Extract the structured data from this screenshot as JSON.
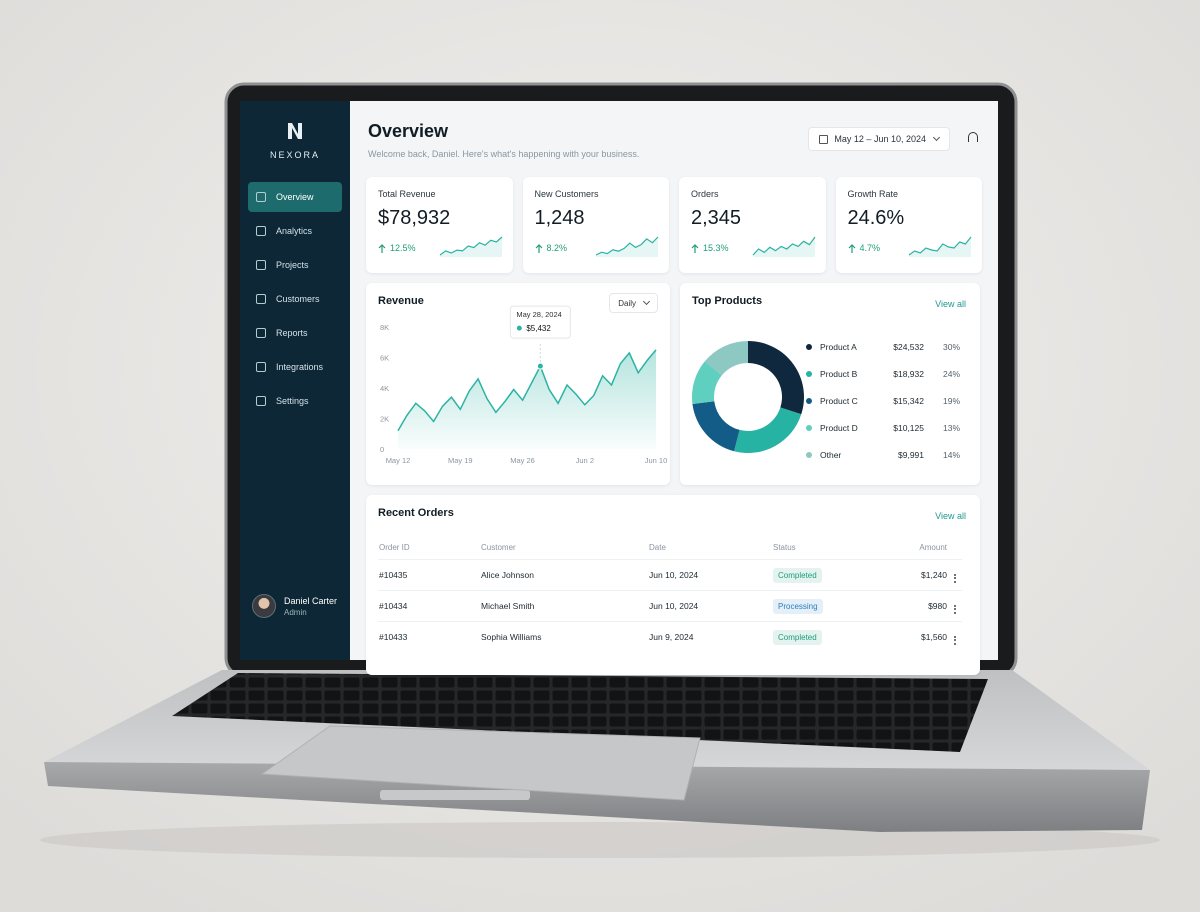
{
  "sidebar": {
    "logo": "NEXORA",
    "nav": [
      "Overview",
      "Analytics",
      "Projects",
      "Customers",
      "Reports",
      "Integrations",
      "Settings"
    ],
    "user": {
      "name": "Daniel Carter",
      "role": "Admin"
    }
  },
  "header": {
    "title": "Overview",
    "subtitle": "Welcome back, Daniel. Here's what's happening with your business.",
    "date_range": "May 12 – Jun 10, 2024"
  },
  "kpis": [
    {
      "label": "Total Revenue",
      "value": "$78,932",
      "change": "12.5%",
      "trend": [
        2,
        3,
        2.5,
        3.2,
        3,
        4.2,
        3.8,
        5,
        4.4,
        5.6,
        5.2,
        6.4
      ]
    },
    {
      "label": "New Customers",
      "value": "1,248",
      "change": "8.2%",
      "trend": [
        2,
        2.6,
        2.3,
        3.1,
        2.8,
        3.4,
        4.5,
        3.6,
        4.2,
        5.4,
        4.6,
        5.8
      ]
    },
    {
      "label": "Orders",
      "value": "2,345",
      "change": "15.3%",
      "trend": [
        2,
        3.4,
        2.6,
        3.8,
        3,
        4,
        3.4,
        4.6,
        4,
        5.2,
        4.4,
        6.2
      ]
    },
    {
      "label": "Growth Rate",
      "value": "24.6%",
      "change": "4.7%",
      "trend": [
        2,
        2.8,
        2.4,
        3.4,
        3,
        2.8,
        4.2,
        3.6,
        3.4,
        4.6,
        4.2,
        5.6
      ]
    }
  ],
  "chart_data": [
    {
      "type": "area",
      "title": "Revenue",
      "period": "Daily",
      "categories": [
        "May 12",
        null,
        null,
        null,
        null,
        null,
        null,
        "May 19",
        null,
        null,
        null,
        null,
        null,
        null,
        "May 26",
        null,
        null,
        null,
        null,
        null,
        null,
        "Jun 2",
        null,
        null,
        null,
        null,
        null,
        null,
        null,
        "Jun 10"
      ],
      "values": [
        1200,
        2200,
        3000,
        2500,
        1800,
        2800,
        3400,
        2600,
        3800,
        4600,
        3300,
        2400,
        3100,
        3900,
        3200,
        4300,
        5432,
        3900,
        3000,
        4200,
        3600,
        2900,
        3500,
        4800,
        4200,
        5600,
        6300,
        5000,
        5800,
        6500
      ],
      "value_labels": [
        null,
        null,
        null,
        null,
        null,
        null,
        null,
        null,
        null,
        null,
        null,
        null,
        null,
        null,
        null,
        null,
        "$5,432",
        null,
        null,
        null,
        null,
        null,
        null,
        null,
        null,
        null,
        null,
        null,
        null,
        null
      ],
      "tooltip_title": "May 28, 2024",
      "color": "#2bb3a3",
      "ylim": [
        0,
        8000
      ],
      "yticks": [
        0,
        {
          "value": 2000,
          "label": "2K"
        },
        {
          "value": 4000,
          "label": "4K"
        },
        {
          "value": 6000,
          "label": "6K"
        },
        {
          "value": 8000,
          "label": "8K"
        }
      ],
      "grid": false
    },
    {
      "type": "pie",
      "donut": true,
      "title": "Top Products",
      "link": "View all",
      "categories": [
        "Product A",
        "Product B",
        "Product C",
        "Product D",
        "Other"
      ],
      "values": [
        30,
        24,
        19,
        13,
        14
      ],
      "value_labels": [
        "30%",
        "24%",
        "19%",
        "13%",
        "14%"
      ],
      "amounts": [
        "$24,532",
        "$18,932",
        "$15,342",
        "$10,125",
        "$9,991"
      ],
      "colors": [
        "#10283d",
        "#27b3a4",
        "#145c88",
        "#5fcfc0",
        "#8ec8c2"
      ]
    }
  ],
  "orders": {
    "title": "Recent Orders",
    "link": "View all",
    "columns": [
      "Order ID",
      "Customer",
      "Date",
      "Status",
      "Amount"
    ],
    "rows": [
      [
        "#10435",
        "Alice Johnson",
        "Jun 10, 2024",
        "Completed",
        "$1,240"
      ],
      [
        "#10434",
        "Michael Smith",
        "Jun 10, 2024",
        "Processing",
        "$980"
      ],
      [
        "#10433",
        "Sophia Williams",
        "Jun 9, 2024",
        "Completed",
        "$1,560"
      ]
    ],
    "status_colors": [
      "#1f9d78",
      "#2a7fc0",
      "#1f9d78"
    ]
  }
}
